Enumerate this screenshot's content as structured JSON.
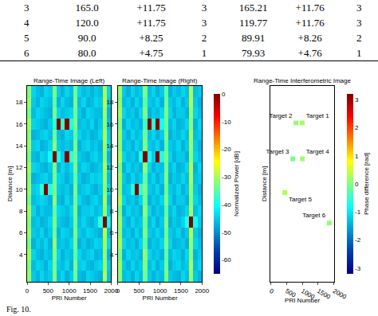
{
  "table": {
    "rows": [
      [
        "3",
        "165.0",
        "+11.75",
        "3",
        "165.21",
        "+11.76",
        "3"
      ],
      [
        "4",
        "120.0",
        "+11.75",
        "3",
        "119.77",
        "+11.76",
        "3"
      ],
      [
        "5",
        "90.0",
        "+8.25",
        "2",
        "89.91",
        "+8.26",
        "2"
      ],
      [
        "6",
        "80.0",
        "+4.75",
        "1",
        "79.93",
        "+4.76",
        "1"
      ]
    ]
  },
  "caption": "Fig. 10.",
  "chart_data": [
    {
      "type": "heatmap",
      "title": "Range-Time Image (Left)",
      "xlabel": "PRI Number",
      "ylabel": "Distance [m]",
      "xlim": [
        0,
        2000
      ],
      "ylim": [
        1.5,
        19.5
      ],
      "xticks": [
        0,
        500,
        1000,
        1500,
        2000
      ],
      "yticks": [
        4,
        6,
        8,
        10,
        12,
        14,
        16,
        18
      ],
      "x": [
        50,
        150,
        250,
        350,
        450,
        550,
        650,
        750,
        850,
        950,
        1050,
        1150,
        1250,
        1350,
        1450,
        1550,
        1650,
        1750,
        1850,
        1950
      ],
      "y": [
        2,
        3,
        4,
        5,
        6,
        7,
        8,
        9,
        10,
        11,
        12,
        13,
        14,
        15,
        16,
        17,
        18,
        19
      ],
      "z": [
        [
          -31,
          -45,
          -47,
          -44,
          -46,
          -45,
          -33,
          -46,
          -44,
          -47,
          -45,
          -34,
          -46,
          -47,
          -44,
          -45,
          -46,
          -47,
          -30,
          -46
        ],
        [
          -32,
          -46,
          -44,
          -45,
          -47,
          -44,
          -34,
          -45,
          -46,
          -44,
          -47,
          -33,
          -45,
          -44,
          -46,
          -47,
          -45,
          -44,
          -31,
          -45
        ],
        [
          -30,
          -44,
          -46,
          -47,
          -45,
          -46,
          -33,
          -44,
          -47,
          -45,
          -46,
          -35,
          -44,
          -46,
          -45,
          -44,
          -47,
          -46,
          -32,
          -47
        ],
        [
          -33,
          -47,
          -45,
          -46,
          -44,
          -47,
          -32,
          -46,
          -45,
          -46,
          -44,
          -34,
          -47,
          -45,
          -47,
          -46,
          -44,
          -45,
          -30,
          -44
        ],
        [
          -31,
          -45,
          -46,
          -44,
          -47,
          -45,
          -34,
          -47,
          -44,
          -45,
          -46,
          -33,
          -45,
          -46,
          -44,
          -45,
          -46,
          -47,
          -29,
          -46
        ],
        [
          -32,
          -46,
          -45,
          -47,
          -46,
          -44,
          -33,
          -45,
          -46,
          -47,
          -45,
          -34,
          -46,
          -44,
          -46,
          -47,
          -45,
          -38,
          0,
          -40
        ],
        [
          -30,
          -44,
          -47,
          -45,
          -46,
          -46,
          -35,
          -44,
          -45,
          -46,
          -44,
          -33,
          -47,
          -45,
          -45,
          -44,
          -46,
          -45,
          -31,
          -45
        ],
        [
          -33,
          -46,
          -45,
          -44,
          -45,
          -47,
          -32,
          -46,
          -47,
          -44,
          -46,
          -34,
          -44,
          -46,
          -47,
          -45,
          -44,
          -46,
          -30,
          -47
        ],
        [
          -31,
          -45,
          -44,
          -38,
          0,
          -39,
          -33,
          -45,
          -46,
          -45,
          -47,
          -33,
          -46,
          -45,
          -44,
          -46,
          -47,
          -45,
          -32,
          -44
        ],
        [
          -32,
          -47,
          -46,
          -45,
          -44,
          -46,
          -34,
          -44,
          -45,
          -47,
          -45,
          -35,
          -45,
          -47,
          -46,
          -44,
          -45,
          -44,
          -31,
          -46
        ],
        [
          -30,
          -44,
          -45,
          -46,
          -47,
          -45,
          -33,
          -47,
          -44,
          -46,
          -44,
          -33,
          -46,
          -44,
          -45,
          -47,
          -46,
          -45,
          -30,
          -45
        ],
        [
          -33,
          -46,
          -47,
          -44,
          -45,
          -40,
          0,
          -39,
          -45,
          0,
          -38,
          -34,
          -45,
          -46,
          -47,
          -45,
          -44,
          -46,
          -32,
          -47
        ],
        [
          -31,
          -45,
          -44,
          -47,
          -46,
          -44,
          -32,
          -45,
          -46,
          -45,
          -46,
          -33,
          -47,
          -45,
          -44,
          -46,
          -45,
          -47,
          -31,
          -44
        ],
        [
          -32,
          -47,
          -46,
          -45,
          -44,
          -46,
          -34,
          -46,
          -47,
          -44,
          -45,
          -35,
          -44,
          -46,
          -45,
          -47,
          -46,
          -44,
          -30,
          -45
        ],
        [
          -30,
          -44,
          -45,
          -46,
          -47,
          -45,
          -38,
          0,
          -37,
          0,
          -39,
          -33,
          -46,
          -45,
          -46,
          -44,
          -47,
          -45,
          -32,
          -46
        ],
        [
          -33,
          -46,
          -44,
          -45,
          -46,
          -47,
          -33,
          -44,
          -46,
          -45,
          -44,
          -34,
          -45,
          -47,
          -44,
          -45,
          -46,
          -46,
          -31,
          -47
        ],
        [
          -31,
          -45,
          -47,
          -44,
          -45,
          -46,
          -35,
          -47,
          -44,
          -46,
          -47,
          -33,
          -46,
          -44,
          -47,
          -46,
          -44,
          -45,
          -29,
          -45
        ],
        [
          -32,
          -44,
          -46,
          -47,
          -44,
          -45,
          -33,
          -45,
          -47,
          -44,
          -46,
          -34,
          -44,
          -46,
          -45,
          -47,
          -45,
          -46,
          -30,
          -44
        ]
      ]
    },
    {
      "type": "heatmap",
      "title": "Range-Time Image (Right)",
      "xlabel": "PRI Number",
      "xlim": [
        0,
        2000
      ],
      "ylim": [
        1.5,
        19.5
      ],
      "xticks": [
        0,
        500,
        1000,
        1500,
        2000
      ],
      "yticks": [
        4,
        6,
        8,
        10,
        12,
        14,
        16,
        18
      ],
      "x": [
        50,
        150,
        250,
        350,
        450,
        550,
        650,
        750,
        850,
        950,
        1050,
        1150,
        1250,
        1350,
        1450,
        1550,
        1650,
        1750,
        1850,
        1950
      ],
      "y": [
        2,
        3,
        4,
        5,
        6,
        7,
        8,
        9,
        10,
        11,
        12,
        13,
        14,
        15,
        16,
        17,
        18,
        19
      ],
      "z": [
        [
          -32,
          -46,
          -45,
          -47,
          -44,
          -46,
          -34,
          -45,
          -47,
          -45,
          -46,
          -33,
          -45,
          -46,
          -47,
          -44,
          -46,
          -31,
          -45,
          -47
        ],
        [
          -31,
          -45,
          -47,
          -44,
          -46,
          -45,
          -33,
          -46,
          -44,
          -47,
          -45,
          -34,
          -47,
          -45,
          -44,
          -46,
          -45,
          -30,
          -46,
          -44
        ],
        [
          -33,
          -47,
          -44,
          -46,
          -45,
          -47,
          -32,
          -44,
          -46,
          -45,
          -47,
          -35,
          -46,
          -44,
          -45,
          -47,
          -44,
          -32,
          -47,
          -45
        ],
        [
          -30,
          -44,
          -46,
          -45,
          -47,
          -44,
          -35,
          -47,
          -45,
          -46,
          -44,
          -33,
          -44,
          -47,
          -46,
          -45,
          -47,
          -31,
          -44,
          -46
        ],
        [
          -32,
          -46,
          -45,
          -47,
          -44,
          -46,
          -33,
          -45,
          -46,
          -44,
          -46,
          -34,
          -45,
          -46,
          -44,
          -47,
          -45,
          -29,
          -45,
          -47
        ],
        [
          -31,
          -45,
          -47,
          -44,
          -46,
          -45,
          -34,
          -46,
          -44,
          -47,
          -45,
          -33,
          -47,
          -45,
          -46,
          -44,
          -39,
          0,
          -40,
          -45
        ],
        [
          -33,
          -47,
          -44,
          -46,
          -45,
          -47,
          -32,
          -44,
          -47,
          -45,
          -46,
          -35,
          -46,
          -44,
          -47,
          -46,
          -44,
          -30,
          -46,
          -44
        ],
        [
          -30,
          -44,
          -46,
          -45,
          -47,
          -44,
          -34,
          -47,
          -45,
          -46,
          -44,
          -33,
          -44,
          -47,
          -45,
          -45,
          -47,
          -32,
          -44,
          -46
        ],
        [
          -32,
          -46,
          -45,
          -39,
          0,
          -38,
          -33,
          -45,
          -46,
          -44,
          -47,
          -34,
          -45,
          -46,
          -44,
          -47,
          -45,
          -31,
          -45,
          -47
        ],
        [
          -31,
          -45,
          -47,
          -44,
          -46,
          -45,
          -35,
          -46,
          -44,
          -47,
          -45,
          -33,
          -47,
          -45,
          -46,
          -44,
          -46,
          -30,
          -46,
          -45
        ],
        [
          -33,
          -47,
          -44,
          -46,
          -45,
          -47,
          -32,
          -44,
          -47,
          -45,
          -46,
          -34,
          -46,
          -44,
          -47,
          -46,
          -44,
          -29,
          -47,
          -44
        ],
        [
          -30,
          -44,
          -46,
          -45,
          -47,
          -39,
          0,
          -40,
          -45,
          0,
          -39,
          -33,
          -44,
          -47,
          -45,
          -45,
          -47,
          -32,
          -44,
          -46
        ],
        [
          -32,
          -46,
          -45,
          -47,
          -44,
          -46,
          -33,
          -45,
          -46,
          -44,
          -47,
          -35,
          -45,
          -46,
          -44,
          -47,
          -45,
          -31,
          -45,
          -47
        ],
        [
          -31,
          -45,
          -47,
          -44,
          -46,
          -45,
          -34,
          -46,
          -44,
          -47,
          -45,
          -33,
          -47,
          -45,
          -46,
          -44,
          -46,
          -30,
          -46,
          -45
        ],
        [
          -33,
          -47,
          -44,
          -46,
          -45,
          -47,
          -37,
          0,
          -38,
          0,
          -40,
          -34,
          -46,
          -44,
          -47,
          -46,
          -44,
          -32,
          -47,
          -44
        ],
        [
          -30,
          -44,
          -46,
          -45,
          -47,
          -44,
          -33,
          -47,
          -45,
          -46,
          -44,
          -33,
          -44,
          -47,
          -45,
          -45,
          -47,
          -31,
          -44,
          -46
        ],
        [
          -32,
          -46,
          -45,
          -47,
          -44,
          -46,
          -35,
          -45,
          -46,
          -44,
          -47,
          -34,
          -45,
          -46,
          -44,
          -47,
          -45,
          -29,
          -45,
          -47
        ],
        [
          -31,
          -45,
          -47,
          -44,
          -46,
          -45,
          -33,
          -46,
          -44,
          -47,
          -45,
          -35,
          -47,
          -45,
          -46,
          -44,
          -46,
          -30,
          -46,
          -45
        ]
      ],
      "colorbar": {
        "title": "Normalized Power [dB]",
        "range": [
          -65,
          0
        ],
        "ticks": [
          0,
          -10,
          -20,
          -30,
          -40,
          -50,
          -60
        ]
      }
    },
    {
      "type": "scatter",
      "title": "Range-Time Interferometric Image",
      "xlabel": "PRI Number",
      "ylabel": "Distance [m]",
      "xlim": [
        0,
        2000
      ],
      "ylim": [
        1.5,
        19.5
      ],
      "xticks": [
        0,
        500,
        1000,
        1500,
        2000
      ],
      "tick_labels": "x",
      "marker": "square",
      "labels": [
        "Target 1",
        "Target 2",
        "Target 3",
        "Target 4",
        "Target 5",
        "Target 6"
      ],
      "x": [
        1000,
        800,
        700,
        1000,
        450,
        1850
      ],
      "y": [
        16.1,
        16.1,
        12.8,
        12.8,
        9.7,
        6.9
      ],
      "phase": [
        0.2,
        0.1,
        -0.1,
        0.2,
        0.3,
        0.1
      ],
      "colorbar": {
        "title": "Phase difference [rad]",
        "range": [
          -3.2,
          3.2
        ],
        "ticks": [
          3,
          2,
          1,
          0,
          -1,
          -2,
          -3
        ]
      }
    }
  ]
}
